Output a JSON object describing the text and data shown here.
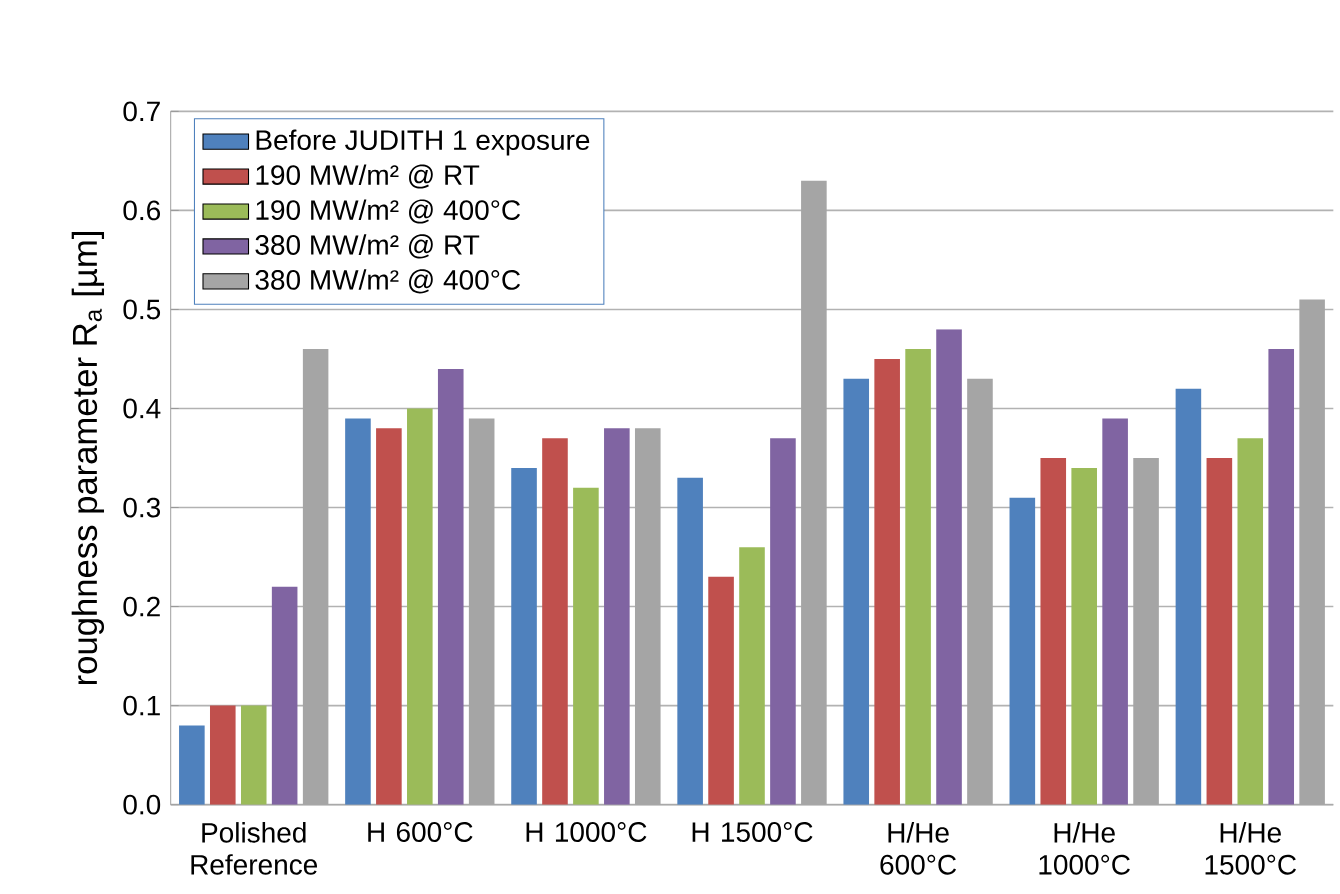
{
  "chart_data": {
    "type": "bar",
    "ylabel": "roughness parameter R$_{a}$ [µm]",
    "categories": [
      "Polished Reference",
      "H 600°C",
      "H 1000°C",
      "H 1500°C",
      "H/He 600°C",
      "H/He 1000°C",
      "H/He 1500°C"
    ],
    "series": [
      {
        "name": "Before JUDITH 1 exposure",
        "color": "#4f81bd",
        "values": [
          0.08,
          0.39,
          0.34,
          0.33,
          0.43,
          0.31,
          0.42
        ]
      },
      {
        "name": "190 MW/m² @ RT",
        "color": "#c0504d",
        "values": [
          0.1,
          0.38,
          0.37,
          0.23,
          0.45,
          0.35,
          0.35
        ]
      },
      {
        "name": "190 MW/m² @ 400°C",
        "color": "#9bbb59",
        "values": [
          0.1,
          0.4,
          0.32,
          0.26,
          0.46,
          0.34,
          0.37
        ]
      },
      {
        "name": "380 MW/m² @ RT",
        "color": "#8064a2",
        "values": [
          0.22,
          0.44,
          0.38,
          0.37,
          0.48,
          0.39,
          0.46
        ]
      },
      {
        "name": "380 MW/m² @ 400°C",
        "color": "#a5a5a5",
        "values": [
          0.46,
          0.39,
          0.38,
          0.63,
          0.43,
          0.35,
          0.51
        ]
      }
    ],
    "ylim": [
      0,
      0.7
    ],
    "yticks": [
      {
        "value": 0,
        "label": "0.0"
      },
      0.1,
      0.2,
      0.3,
      0.4,
      0.5,
      0.6,
      0.7
    ],
    "grid": "y",
    "legend": "top left"
  }
}
